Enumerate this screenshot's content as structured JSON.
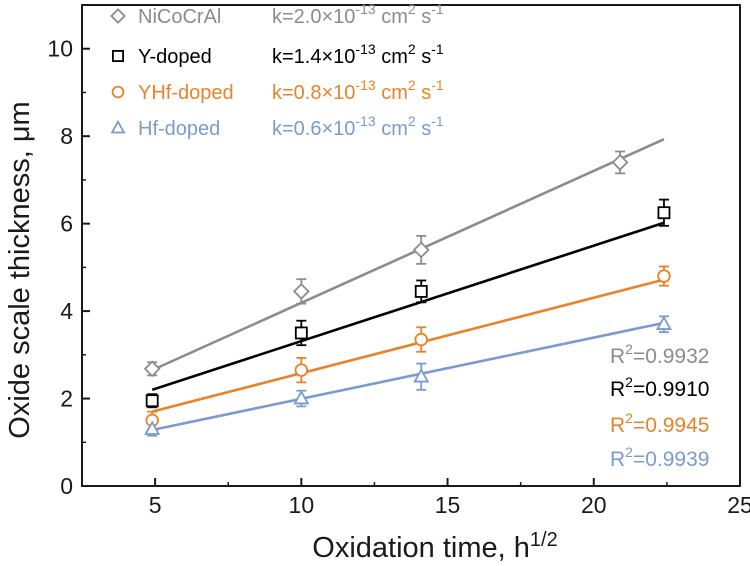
{
  "chart_data": {
    "type": "scatter",
    "xlabel": "Oxidation time, h",
    "xlabel_sup": "1/2",
    "ylabel": "Oxide scale thickness, μm",
    "xlim": [
      2.5,
      25
    ],
    "ylim": [
      0,
      11
    ],
    "x_ticks": [
      5,
      10,
      15,
      20,
      25
    ],
    "y_ticks": [
      0,
      2,
      4,
      6,
      8,
      10
    ],
    "grid": false,
    "legend_position": "top-left",
    "series": [
      {
        "name": "NiCoCrAl",
        "marker": "diamond",
        "color": "#8c8c8c",
        "x": [
          4.9,
          10.0,
          14.1,
          20.9
        ],
        "y": [
          2.68,
          4.45,
          5.4,
          7.4
        ],
        "err": [
          0.15,
          0.28,
          0.32,
          0.25
        ],
        "fit_x": [
          4.9,
          22.4
        ],
        "fit_y": [
          2.65,
          7.93
        ],
        "k_prefix": "k=",
        "k_mantissa": "2.0×10",
        "k_exp": "-13",
        "k_unit": " cm",
        "k_unit_sup": "2",
        "k_unit_end": " s",
        "k_unit_end_sup": "-1",
        "r2_label": "R",
        "r2_sup": "2",
        "r2_value": "=0.9932"
      },
      {
        "name": "Y-doped",
        "marker": "square",
        "color": "#000000",
        "x": [
          4.9,
          10.0,
          14.1,
          22.4
        ],
        "y": [
          1.95,
          3.5,
          4.45,
          6.25
        ],
        "err": [
          0.15,
          0.28,
          0.25,
          0.3
        ],
        "fit_x": [
          4.9,
          22.4
        ],
        "fit_y": [
          2.2,
          6.02
        ],
        "k_prefix": "k=",
        "k_mantissa": "1.4×10",
        "k_exp": "-13",
        "k_unit": " cm",
        "k_unit_sup": "2",
        "k_unit_end": " s",
        "k_unit_end_sup": "-1",
        "r2_label": "R",
        "r2_sup": "2",
        "r2_value": "=0.9910"
      },
      {
        "name": "YHf-doped",
        "marker": "circle",
        "color": "#e8832a",
        "x": [
          4.9,
          10.0,
          14.1,
          22.4
        ],
        "y": [
          1.5,
          2.65,
          3.35,
          4.8
        ],
        "err": [
          0.2,
          0.28,
          0.28,
          0.22
        ],
        "fit_x": [
          4.9,
          22.4
        ],
        "fit_y": [
          1.7,
          4.72
        ],
        "k_prefix": "k=",
        "k_mantissa": "0.8×10",
        "k_exp": "-13",
        "k_unit": " cm",
        "k_unit_sup": "2",
        "k_unit_end": " s",
        "k_unit_end_sup": "-1",
        "r2_label": "R",
        "r2_sup": "2",
        "r2_value": "=0.9945"
      },
      {
        "name": "Hf-doped",
        "marker": "triangle",
        "color": "#7a9bd1",
        "x": [
          4.9,
          10.0,
          14.1,
          22.4
        ],
        "y": [
          1.3,
          2.0,
          2.5,
          3.7
        ],
        "err": [
          0.15,
          0.18,
          0.3,
          0.18
        ],
        "fit_x": [
          4.9,
          22.4
        ],
        "fit_y": [
          1.28,
          3.73
        ],
        "k_prefix": "k=",
        "k_mantissa": "0.6×10",
        "k_exp": "-13",
        "k_unit": " cm",
        "k_unit_sup": "2",
        "k_unit_end": " s",
        "k_unit_end_sup": "-1",
        "r2_label": "R",
        "r2_sup": "2",
        "r2_value": "=0.9939"
      }
    ]
  }
}
